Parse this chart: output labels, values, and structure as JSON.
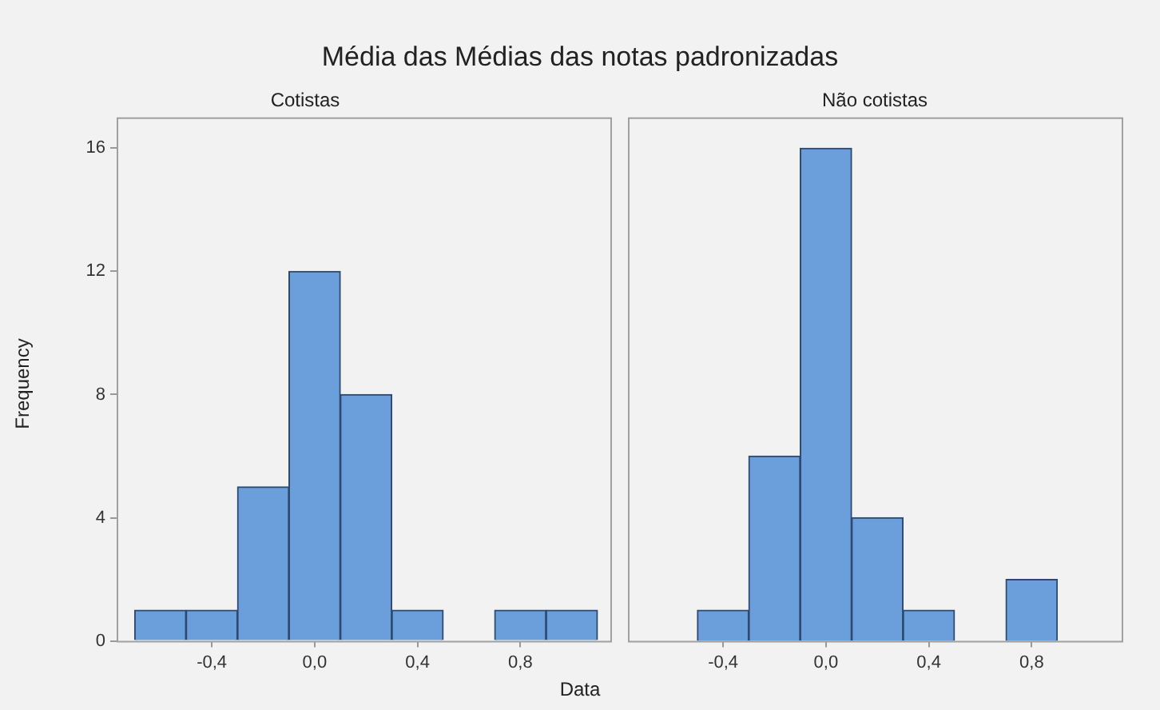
{
  "chart_data": [
    {
      "type": "histogram",
      "title": "Cotistas",
      "ylabel": "Frequency",
      "annotations": [
        "Média das Médias das notas padronizadas"
      ],
      "bins": [
        -0.7,
        -0.5,
        -0.3,
        -0.1,
        0.1,
        0.3,
        0.5,
        0.7,
        0.9,
        1.1
      ],
      "values": [
        1,
        1,
        5,
        12,
        8,
        1,
        0,
        1,
        1
      ],
      "color": "#6b9fdc",
      "xlim": [
        -0.77,
        1.15
      ],
      "xticks": [
        {
          "value": -0.4,
          "label": "-0,4"
        },
        {
          "value": 0,
          "label": "0,0"
        },
        {
          "value": 0.4,
          "label": "0,4"
        },
        {
          "value": 0.8,
          "label": "0,8"
        }
      ],
      "ylim": [
        0,
        17
      ],
      "yticks": [
        0,
        4,
        8,
        12,
        16
      ],
      "grid": false,
      "legend": false
    },
    {
      "type": "histogram",
      "title": "Não cotistas",
      "xlabel": "Data",
      "bins": [
        -0.5,
        -0.3,
        -0.1,
        0.1,
        0.3,
        0.5,
        0.7,
        0.9
      ],
      "values": [
        1,
        6,
        16,
        4,
        1,
        0,
        2
      ],
      "color": "#6b9fdc",
      "xlim": [
        -0.77,
        1.15
      ],
      "xticks": [
        {
          "value": -0.4,
          "label": "-0,4"
        },
        {
          "value": 0,
          "label": "0,0"
        },
        {
          "value": 0.4,
          "label": "0,4"
        },
        {
          "value": 0.8,
          "label": "0,8"
        }
      ],
      "ylim": [
        0,
        17
      ],
      "yticks": [
        0,
        4,
        8,
        12,
        16
      ],
      "grid": false,
      "legend": false,
      "tick_labels": "x"
    }
  ]
}
